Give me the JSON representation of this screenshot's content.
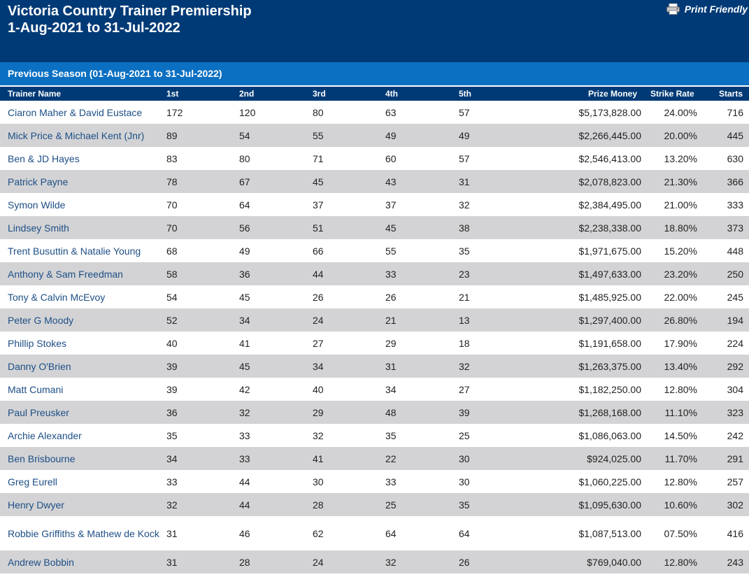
{
  "header": {
    "title_line1": "Victoria Country Trainer Premiership",
    "title_line2": "1-Aug-2021 to 31-Jul-2022",
    "print_label": "Print Friendly",
    "print_icon": "printer-icon"
  },
  "season": {
    "label": "Previous Season (01-Aug-2021 to 31-Jul-2022)"
  },
  "table": {
    "columns": [
      "Trainer Name",
      "1st",
      "2nd",
      "3rd",
      "4th",
      "5th",
      "Prize Money",
      "Strike Rate",
      "Starts"
    ],
    "rows": [
      {
        "name": "Ciaron Maher & David Eustace",
        "first": "172",
        "second": "120",
        "third": "80",
        "fourth": "63",
        "fifth": "57",
        "prize": "$5,173,828.00",
        "strike": "24.00%",
        "starts": "716"
      },
      {
        "name": "Mick Price & Michael Kent (Jnr)",
        "first": "89",
        "second": "54",
        "third": "55",
        "fourth": "49",
        "fifth": "49",
        "prize": "$2,266,445.00",
        "strike": "20.00%",
        "starts": "445"
      },
      {
        "name": "Ben & JD Hayes",
        "first": "83",
        "second": "80",
        "third": "71",
        "fourth": "60",
        "fifth": "57",
        "prize": "$2,546,413.00",
        "strike": "13.20%",
        "starts": "630"
      },
      {
        "name": "Patrick Payne",
        "first": "78",
        "second": "67",
        "third": "45",
        "fourth": "43",
        "fifth": "31",
        "prize": "$2,078,823.00",
        "strike": "21.30%",
        "starts": "366"
      },
      {
        "name": "Symon Wilde",
        "first": "70",
        "second": "64",
        "third": "37",
        "fourth": "37",
        "fifth": "32",
        "prize": "$2,384,495.00",
        "strike": "21.00%",
        "starts": "333"
      },
      {
        "name": "Lindsey Smith",
        "first": "70",
        "second": "56",
        "third": "51",
        "fourth": "45",
        "fifth": "38",
        "prize": "$2,238,338.00",
        "strike": "18.80%",
        "starts": "373"
      },
      {
        "name": "Trent Busuttin & Natalie Young",
        "first": "68",
        "second": "49",
        "third": "66",
        "fourth": "55",
        "fifth": "35",
        "prize": "$1,971,675.00",
        "strike": "15.20%",
        "starts": "448"
      },
      {
        "name": "Anthony & Sam Freedman",
        "first": "58",
        "second": "36",
        "third": "44",
        "fourth": "33",
        "fifth": "23",
        "prize": "$1,497,633.00",
        "strike": "23.20%",
        "starts": "250"
      },
      {
        "name": "Tony & Calvin McEvoy",
        "first": "54",
        "second": "45",
        "third": "26",
        "fourth": "26",
        "fifth": "21",
        "prize": "$1,485,925.00",
        "strike": "22.00%",
        "starts": "245"
      },
      {
        "name": "Peter G Moody",
        "first": "52",
        "second": "34",
        "third": "24",
        "fourth": "21",
        "fifth": "13",
        "prize": "$1,297,400.00",
        "strike": "26.80%",
        "starts": "194"
      },
      {
        "name": "Phillip Stokes",
        "first": "40",
        "second": "41",
        "third": "27",
        "fourth": "29",
        "fifth": "18",
        "prize": "$1,191,658.00",
        "strike": "17.90%",
        "starts": "224"
      },
      {
        "name": "Danny O'Brien",
        "first": "39",
        "second": "45",
        "third": "34",
        "fourth": "31",
        "fifth": "32",
        "prize": "$1,263,375.00",
        "strike": "13.40%",
        "starts": "292"
      },
      {
        "name": "Matt Cumani",
        "first": "39",
        "second": "42",
        "third": "40",
        "fourth": "34",
        "fifth": "27",
        "prize": "$1,182,250.00",
        "strike": "12.80%",
        "starts": "304"
      },
      {
        "name": "Paul Preusker",
        "first": "36",
        "second": "32",
        "third": "29",
        "fourth": "48",
        "fifth": "39",
        "prize": "$1,268,168.00",
        "strike": "11.10%",
        "starts": "323"
      },
      {
        "name": "Archie Alexander",
        "first": "35",
        "second": "33",
        "third": "32",
        "fourth": "35",
        "fifth": "25",
        "prize": "$1,086,063.00",
        "strike": "14.50%",
        "starts": "242"
      },
      {
        "name": "Ben Brisbourne",
        "first": "34",
        "second": "33",
        "third": "41",
        "fourth": "22",
        "fifth": "30",
        "prize": "$924,025.00",
        "strike": "11.70%",
        "starts": "291"
      },
      {
        "name": "Greg Eurell",
        "first": "33",
        "second": "44",
        "third": "30",
        "fourth": "33",
        "fifth": "30",
        "prize": "$1,060,225.00",
        "strike": "12.80%",
        "starts": "257"
      },
      {
        "name": "Henry Dwyer",
        "first": "32",
        "second": "44",
        "third": "28",
        "fourth": "25",
        "fifth": "35",
        "prize": "$1,095,630.00",
        "strike": "10.60%",
        "starts": "302"
      },
      {
        "name": "Robbie Griffiths & Mathew de Kock",
        "first": "31",
        "second": "46",
        "third": "62",
        "fourth": "64",
        "fifth": "64",
        "prize": "$1,087,513.00",
        "strike": "07.50%",
        "starts": "416"
      },
      {
        "name": "Andrew Bobbin",
        "first": "31",
        "second": "28",
        "third": "24",
        "fourth": "32",
        "fifth": "26",
        "prize": "$769,040.00",
        "strike": "12.80%",
        "starts": "243"
      }
    ]
  },
  "colors": {
    "header_bg": "#003a76",
    "season_bar_bg": "#0b70c2",
    "alt_row_bg": "#d3d3d5",
    "link": "#1d4f86"
  }
}
